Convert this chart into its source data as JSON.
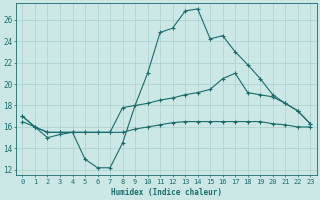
{
  "title": "",
  "xlabel": "Humidex (Indice chaleur)",
  "xlim": [
    -0.5,
    23.5
  ],
  "ylim": [
    11.5,
    27.5
  ],
  "xticks": [
    0,
    1,
    2,
    3,
    4,
    5,
    6,
    7,
    8,
    9,
    10,
    11,
    12,
    13,
    14,
    15,
    16,
    17,
    18,
    19,
    20,
    21,
    22,
    23
  ],
  "yticks": [
    12,
    14,
    16,
    18,
    20,
    22,
    24,
    26
  ],
  "bg_color": "#cce8e6",
  "line_color": "#1a6b6b",
  "grid_color": "#aacfcd",
  "line1_y": [
    17.0,
    16.0,
    15.0,
    15.3,
    15.5,
    13.0,
    12.2,
    12.2,
    14.5,
    18.0,
    21.0,
    24.8,
    25.2,
    26.8,
    27.0,
    24.2,
    24.5,
    23.0,
    21.8,
    20.5,
    19.0,
    18.2,
    17.5,
    16.3
  ],
  "line2_y": [
    17.0,
    16.0,
    15.5,
    15.5,
    15.5,
    15.5,
    15.5,
    15.5,
    17.8,
    18.0,
    18.2,
    18.5,
    18.7,
    19.0,
    19.2,
    19.5,
    20.5,
    21.0,
    19.2,
    19.0,
    18.8,
    18.2,
    17.5,
    16.3
  ],
  "line3_y": [
    16.5,
    16.0,
    15.5,
    15.5,
    15.5,
    15.5,
    15.5,
    15.5,
    15.5,
    15.8,
    16.0,
    16.2,
    16.4,
    16.5,
    16.5,
    16.5,
    16.5,
    16.5,
    16.5,
    16.5,
    16.3,
    16.2,
    16.0,
    16.0
  ]
}
